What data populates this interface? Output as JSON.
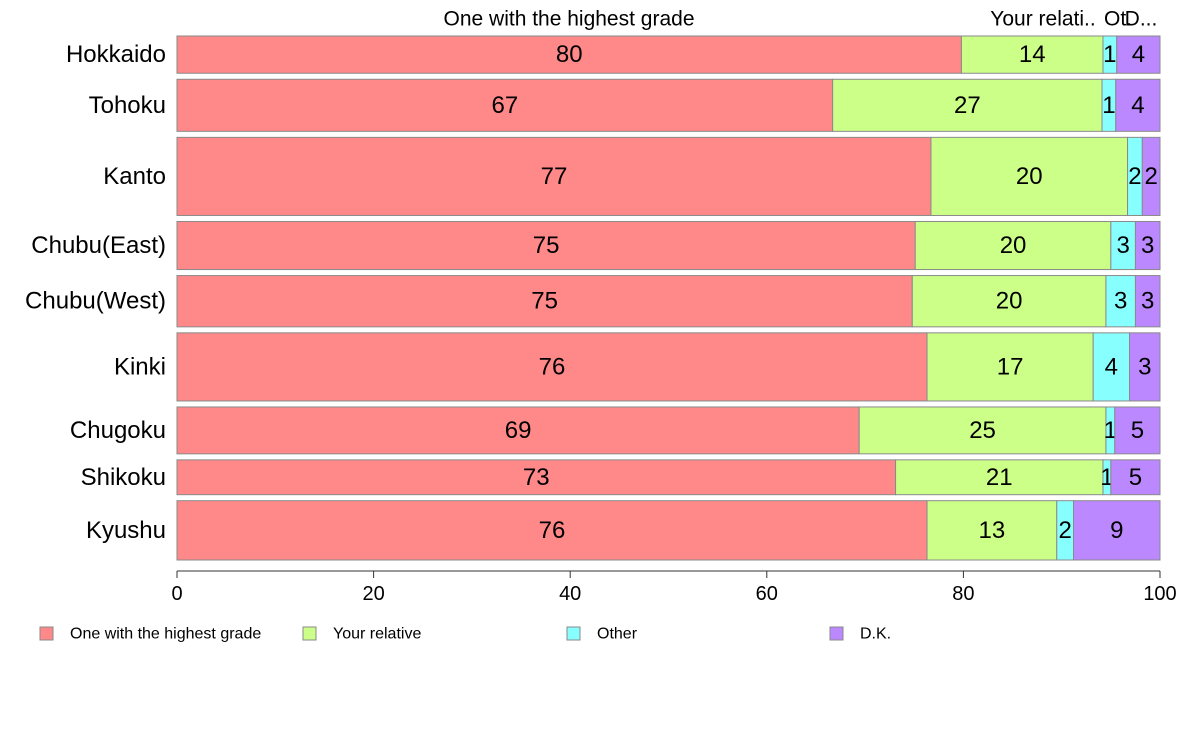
{
  "chart_data": {
    "type": "bar",
    "orientation": "horizontal",
    "stacked": true,
    "percent": true,
    "categories": [
      "Hokkaido",
      "Tohoku",
      "Kanto",
      "Chubu(East)",
      "Chubu(West)",
      "Kinki",
      "Chugoku",
      "Shikoku",
      "Kyushu"
    ],
    "bar_weights": [
      0.93,
      1.3,
      1.95,
      1.2,
      1.28,
      1.7,
      1.17,
      0.87,
      1.48
    ],
    "series": [
      {
        "name": "One with the highest grade",
        "color": "#ff8888",
        "values": [
          79.8,
          66.7,
          76.7,
          75.1,
          74.8,
          76.3,
          69.4,
          73.1,
          76.3
        ],
        "labels": [
          "80",
          "67",
          "77",
          "75",
          "75",
          "76",
          "69",
          "73",
          "76"
        ]
      },
      {
        "name": "Your relative",
        "color": "#ccff88",
        "values": [
          14.4,
          27.4,
          20.0,
          19.9,
          19.7,
          16.9,
          25.1,
          21.1,
          13.2
        ],
        "labels": [
          "14",
          "27",
          "20",
          "20",
          "20",
          "17",
          "25",
          "21",
          "13"
        ]
      },
      {
        "name": "Other",
        "color": "#88ffff",
        "values": [
          1.4,
          1.4,
          1.5,
          2.5,
          3.0,
          3.7,
          0.9,
          0.8,
          1.7
        ],
        "labels": [
          "1",
          "1",
          "2",
          "3",
          "3",
          "4",
          "1",
          "1",
          "2"
        ]
      },
      {
        "name": "D.K.",
        "color": "#bb88ff",
        "values": [
          4.4,
          4.5,
          1.8,
          2.5,
          2.5,
          3.1,
          4.6,
          5.0,
          8.8
        ],
        "labels": [
          "4",
          "4",
          "2",
          "3",
          "3",
          "3",
          "5",
          "5",
          "9"
        ]
      }
    ],
    "top_labels": [
      "One with the highest grade",
      "Your relati..",
      "Ot.",
      "D..."
    ],
    "xlim": [
      0,
      100
    ],
    "xticks": [
      0,
      20,
      40,
      60,
      80,
      100
    ],
    "legend_position": "bottom"
  }
}
